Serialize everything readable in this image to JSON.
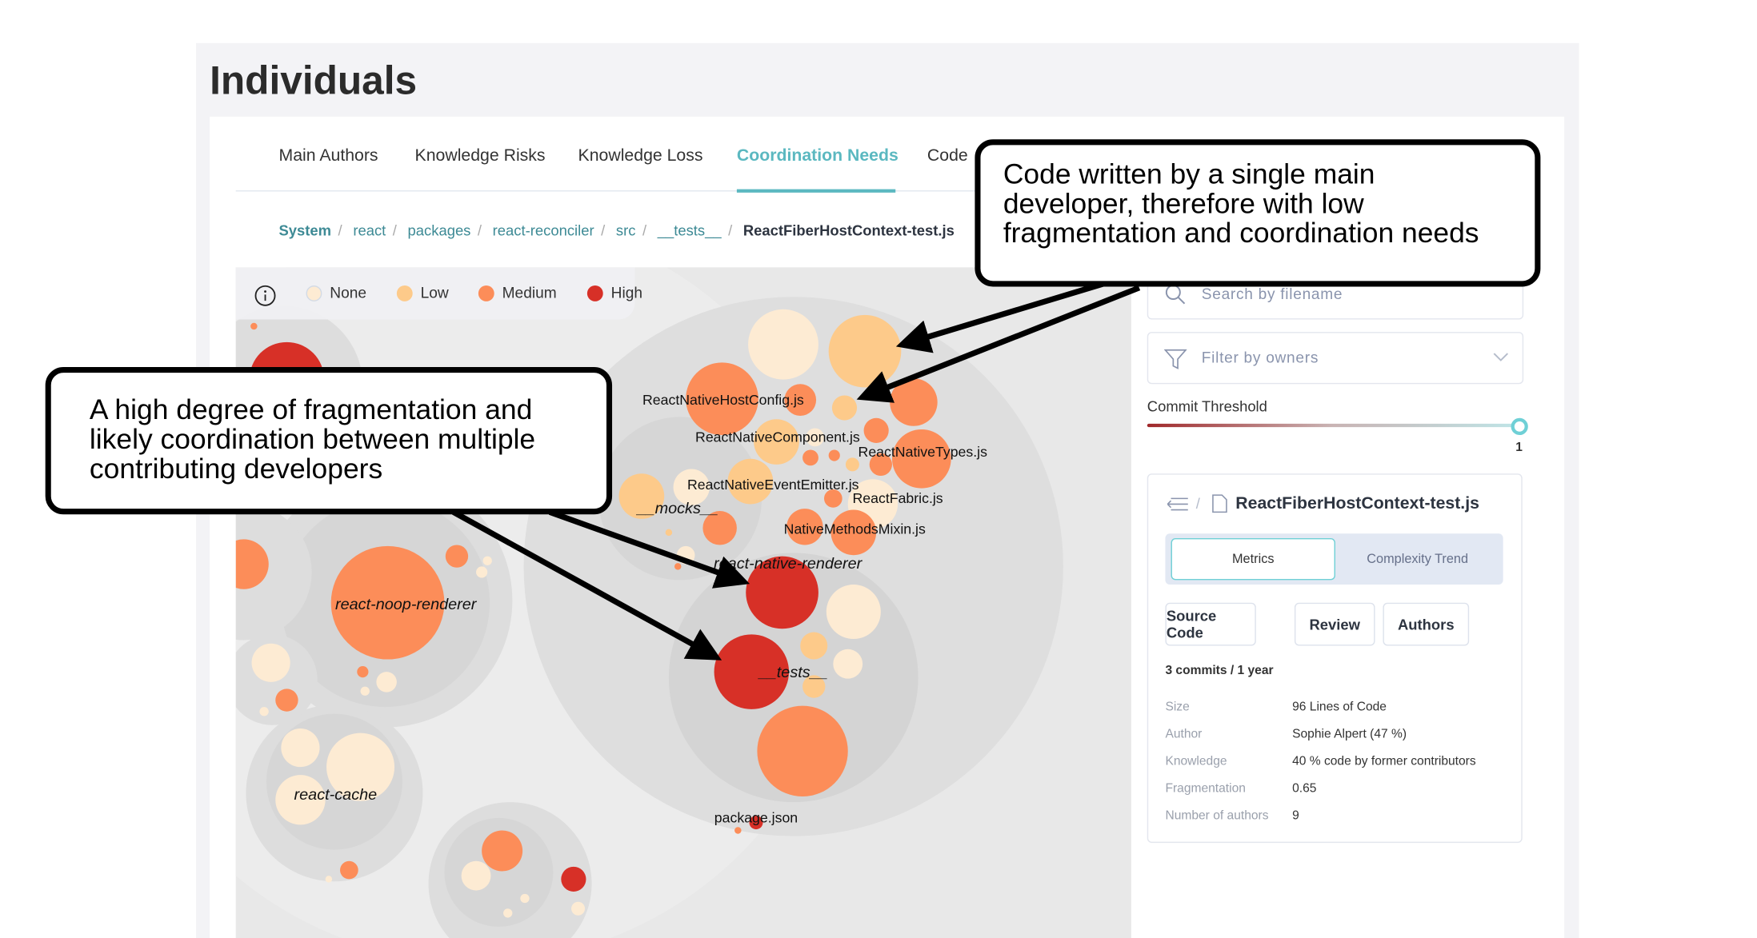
{
  "page_title": "Individuals",
  "tabs": [
    {
      "label": "Main Authors",
      "active": false
    },
    {
      "label": "Knowledge Risks",
      "active": false
    },
    {
      "label": "Knowledge Loss",
      "active": false
    },
    {
      "label": "Coordination Needs",
      "active": true
    },
    {
      "label": "Code",
      "active": false
    }
  ],
  "breadcrumb": [
    "System",
    "react",
    "packages",
    "react-reconciler",
    "src",
    "__tests__",
    "ReactFiberHostContext-test.js"
  ],
  "legend": {
    "items": [
      {
        "label": "None",
        "color": "#fdebd3"
      },
      {
        "label": "Low",
        "color": "#fdca8a"
      },
      {
        "label": "Medium",
        "color": "#fc8d59"
      },
      {
        "label": "High",
        "color": "#d73027"
      }
    ]
  },
  "bubble_labels": {
    "folders": [
      "__mocks__",
      "react-native-renderer",
      "__tests__",
      "react-noop-renderer",
      "react-cache"
    ],
    "files": [
      "ReactNativeHostConfig.js",
      "ReactNativeComponent.js",
      "ReactNativeTypes.js",
      "ReactNativeEventEmitter.js",
      "ReactFabric.js",
      "NativeMethodsMixin.js",
      "package.json"
    ]
  },
  "sidebar": {
    "search_placeholder": "Search by filename",
    "filter_placeholder": "Filter by owners",
    "commit_threshold_label": "Commit Threshold",
    "commit_threshold_value": "1"
  },
  "detail": {
    "file_name": "ReactFiberHostContext-test.js",
    "segments": [
      "Metrics",
      "Complexity Trend"
    ],
    "active_segment": "Metrics",
    "buttons": [
      "Source Code",
      "Review",
      "Authors"
    ],
    "summary": "3 commits / 1 year",
    "metrics": [
      {
        "label": "Size",
        "value": "96 Lines of Code"
      },
      {
        "label": "Author",
        "value": "Sophie Alpert (47 %)"
      },
      {
        "label": "Knowledge",
        "value": "40 % code by former contributors"
      },
      {
        "label": "Fragmentation",
        "value": "0.65"
      },
      {
        "label": "Number of authors",
        "value": "9"
      }
    ]
  },
  "callouts": {
    "top_right": "Code written by a single main developer, therefore with low fragmentation and coordination needs",
    "left": "A high degree of fragmentation and likely coordination between multiple contributing developers"
  },
  "colors": {
    "accent": "#5bb8c0",
    "none": "#fdebd3",
    "low": "#fdca8a",
    "medium": "#fc8d59",
    "high": "#d73027"
  }
}
